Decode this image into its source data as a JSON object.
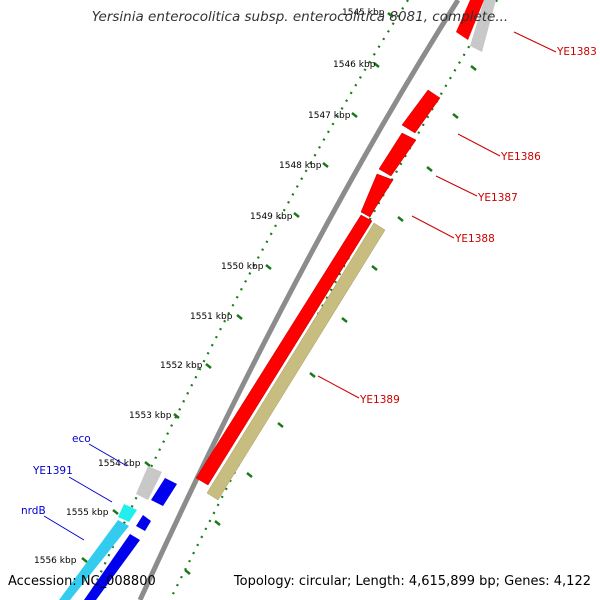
{
  "title": "Yersinia enterocolitica subsp. enterocolitica 8081, complete...",
  "accession": "Accession: NC_008800",
  "summary": "Topology: circular; Length: 4,615,899 bp; Genes: 4,122",
  "colors": {
    "backbone": "#8c8c8c",
    "cds": "#ff0000",
    "cds_shadow": "#c40000",
    "gray_feature": "#c8c8c8",
    "olive_feature": "#c8bd80",
    "blue_feature": "#0000ee",
    "cyan_feature": "#22ccee",
    "tick_green": "#1a7a1a",
    "red_label": "#cc0000",
    "blue_label": "#0000cc"
  },
  "scale_labels": [
    "1545 kbp",
    "1546 kbp",
    "1547 kbp",
    "1548 kbp",
    "1549 kbp",
    "1550 kbp",
    "1551 kbp",
    "1552 kbp",
    "1553 kbp",
    "1554 kbp",
    "1555 kbp",
    "1556 kbp"
  ],
  "gene_labels_right": [
    "YE1383",
    "YE1386",
    "YE1387",
    "YE1388",
    "YE1389"
  ],
  "gene_labels_left": [
    "eco",
    "YE1391",
    "nrdB"
  ]
}
